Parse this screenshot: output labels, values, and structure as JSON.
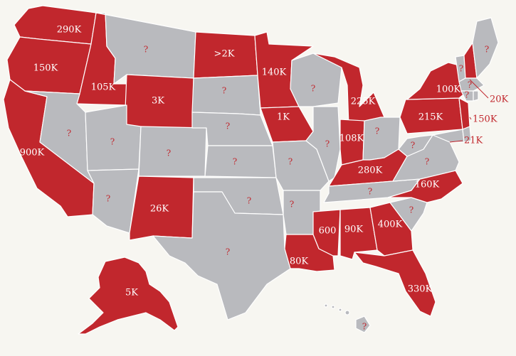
{
  "colors": {
    "highlight": "#c1272d",
    "no_data": "#b9babe",
    "background": "#f7f6f1"
  },
  "states": [
    {
      "id": "WA",
      "value": "290K",
      "fill": "red"
    },
    {
      "id": "OR",
      "value": "150K",
      "fill": "red"
    },
    {
      "id": "CA",
      "value": "900K",
      "fill": "red"
    },
    {
      "id": "ID",
      "value": "105K",
      "fill": "red"
    },
    {
      "id": "NV",
      "value": "?",
      "fill": "gray"
    },
    {
      "id": "MT",
      "value": "?",
      "fill": "gray"
    },
    {
      "id": "WY",
      "value": "3K",
      "fill": "red"
    },
    {
      "id": "UT",
      "value": "?",
      "fill": "gray"
    },
    {
      "id": "AZ",
      "value": "?",
      "fill": "gray"
    },
    {
      "id": "CO",
      "value": "?",
      "fill": "gray"
    },
    {
      "id": "NM",
      "value": "26K",
      "fill": "red"
    },
    {
      "id": "ND",
      "value": ">2K",
      "fill": "red"
    },
    {
      "id": "SD",
      "value": "?",
      "fill": "gray"
    },
    {
      "id": "NE",
      "value": "?",
      "fill": "gray"
    },
    {
      "id": "KS",
      "value": "?",
      "fill": "gray"
    },
    {
      "id": "OK",
      "value": "?",
      "fill": "gray"
    },
    {
      "id": "TX",
      "value": "?",
      "fill": "gray"
    },
    {
      "id": "MN",
      "value": "140K",
      "fill": "red"
    },
    {
      "id": "IA",
      "value": "1K",
      "fill": "red"
    },
    {
      "id": "MO",
      "value": "?",
      "fill": "gray"
    },
    {
      "id": "AR",
      "value": "?",
      "fill": "gray"
    },
    {
      "id": "LA",
      "value": "80K",
      "fill": "red"
    },
    {
      "id": "WI",
      "value": "?",
      "fill": "gray"
    },
    {
      "id": "IL",
      "value": "?",
      "fill": "gray"
    },
    {
      "id": "MI",
      "value": "225K",
      "fill": "red"
    },
    {
      "id": "IN",
      "value": "108K",
      "fill": "red"
    },
    {
      "id": "OH",
      "value": "?",
      "fill": "gray"
    },
    {
      "id": "KY",
      "value": "280K",
      "fill": "red"
    },
    {
      "id": "TN",
      "value": "?",
      "fill": "gray"
    },
    {
      "id": "MS",
      "value": "600",
      "fill": "red"
    },
    {
      "id": "AL",
      "value": "90K",
      "fill": "red"
    },
    {
      "id": "GA",
      "value": "400K",
      "fill": "red"
    },
    {
      "id": "FL",
      "value": "330K",
      "fill": "red"
    },
    {
      "id": "SC",
      "value": "?",
      "fill": "gray"
    },
    {
      "id": "NC",
      "value": "160K",
      "fill": "red"
    },
    {
      "id": "VA",
      "value": "?",
      "fill": "gray"
    },
    {
      "id": "WV",
      "value": "?",
      "fill": "gray"
    },
    {
      "id": "PA",
      "value": "215K",
      "fill": "red"
    },
    {
      "id": "NY",
      "value": "100K",
      "fill": "red"
    },
    {
      "id": "NJ",
      "value": "150K",
      "fill": "red"
    },
    {
      "id": "MD",
      "value": "21K",
      "fill": "gray"
    },
    {
      "id": "DE",
      "value": "",
      "fill": "gray"
    },
    {
      "id": "VT",
      "value": "?",
      "fill": "gray"
    },
    {
      "id": "NH",
      "value": "20K",
      "fill": "red"
    },
    {
      "id": "ME",
      "value": "?",
      "fill": "gray"
    },
    {
      "id": "MA",
      "value": "?",
      "fill": "gray"
    },
    {
      "id": "CT",
      "value": "?",
      "fill": "gray"
    },
    {
      "id": "RI",
      "value": "",
      "fill": "gray"
    },
    {
      "id": "AK",
      "value": "5K",
      "fill": "red"
    },
    {
      "id": "HI",
      "value": "?",
      "fill": "gray"
    }
  ]
}
